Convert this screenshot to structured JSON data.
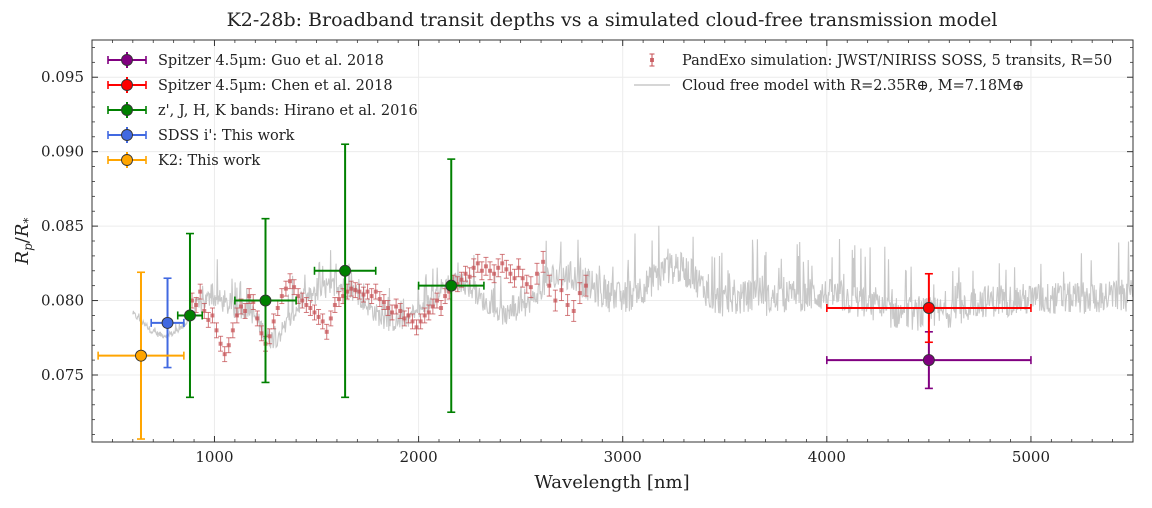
{
  "chart_data": {
    "type": "scatter",
    "title": "K2-28b: Broadband transit depths vs a simulated cloud-free transmission model",
    "xlabel": "Wavelength [nm]",
    "ylabel": "R_p/R_*",
    "xlim": [
      400,
      5500
    ],
    "ylim": [
      0.0705,
      0.0975
    ],
    "xticks": [
      1000,
      2000,
      3000,
      4000,
      5000
    ],
    "xtick_labels": [
      "1000",
      "2000",
      "3000",
      "4000",
      "5000"
    ],
    "yticks": [
      0.075,
      0.08,
      0.085,
      0.09,
      0.095
    ],
    "ytick_labels": [
      "0.075",
      "0.080",
      "0.085",
      "0.090",
      "0.095"
    ],
    "grid": true,
    "legend_left": [
      {
        "label": "Spitzer 4.5μm: Guo et al. 2018",
        "color": "#800080"
      },
      {
        "label": "Spitzer 4.5μm: Chen et al. 2018",
        "color": "#ff0000"
      },
      {
        "label": "z', J, H, K bands: Hirano et al. 2016",
        "color": "#008000"
      },
      {
        "label": "SDSS i': This work",
        "color": "#4169e1"
      },
      {
        "label": "K2: This work",
        "color": "#ffa500"
      }
    ],
    "legend_right": [
      {
        "label": "PandExo simulation: JWST/NIRISS SOSS, 5 transits, R=50",
        "color": "#c44e52"
      },
      {
        "label": "Cloud free model with R=2.35R⊕, M=7.18M⊕",
        "color": "#c8c8c8"
      }
    ],
    "series": [
      {
        "name": "Spitzer 4.5μm: Guo et al. 2018",
        "color": "#800080",
        "points": [
          {
            "x": 4500,
            "y": 0.076,
            "xerr": 500,
            "yerr": 0.0019
          }
        ]
      },
      {
        "name": "Spitzer 4.5μm: Chen et al. 2018",
        "color": "#ff0000",
        "points": [
          {
            "x": 4500,
            "y": 0.0795,
            "xerr": 500,
            "yerr": 0.0023
          }
        ]
      },
      {
        "name": "z', J, H, K bands: Hirano et al. 2016",
        "color": "#008000",
        "points": [
          {
            "x": 880,
            "y": 0.079,
            "xerr": 60,
            "yerr": 0.0055
          },
          {
            "x": 1250,
            "y": 0.08,
            "xerr": 150,
            "yerr": 0.0055
          },
          {
            "x": 1640,
            "y": 0.082,
            "xerr": 150,
            "yerr": 0.0085
          },
          {
            "x": 2160,
            "y": 0.081,
            "xerr": 160,
            "yerr": 0.0085
          }
        ]
      },
      {
        "name": "SDSS i': This work",
        "color": "#4169e1",
        "points": [
          {
            "x": 770,
            "y": 0.0785,
            "xerr": 80,
            "yerr": 0.003
          }
        ]
      },
      {
        "name": "K2: This work",
        "color": "#ffa500",
        "points": [
          {
            "x": 640,
            "y": 0.0763,
            "xerr": 210,
            "yerr": 0.0056
          }
        ]
      }
    ],
    "pandexo": {
      "name": "PandExo simulation: JWST/NIRISS SOSS, 5 transits, R=50",
      "color": "#c44e52",
      "points": [
        {
          "x": 890,
          "y": 0.08,
          "yerr": 0.0005
        },
        {
          "x": 910,
          "y": 0.0797,
          "yerr": 0.0005
        },
        {
          "x": 930,
          "y": 0.0806,
          "yerr": 0.0005
        },
        {
          "x": 950,
          "y": 0.0793,
          "yerr": 0.0005
        },
        {
          "x": 970,
          "y": 0.0787,
          "yerr": 0.0005
        },
        {
          "x": 990,
          "y": 0.079,
          "yerr": 0.0005
        },
        {
          "x": 1010,
          "y": 0.078,
          "yerr": 0.0005
        },
        {
          "x": 1030,
          "y": 0.0771,
          "yerr": 0.0005
        },
        {
          "x": 1050,
          "y": 0.0764,
          "yerr": 0.0005
        },
        {
          "x": 1070,
          "y": 0.077,
          "yerr": 0.0005
        },
        {
          "x": 1090,
          "y": 0.078,
          "yerr": 0.0005
        },
        {
          "x": 1110,
          "y": 0.079,
          "yerr": 0.0005
        },
        {
          "x": 1130,
          "y": 0.0796,
          "yerr": 0.0005
        },
        {
          "x": 1150,
          "y": 0.0793,
          "yerr": 0.0005
        },
        {
          "x": 1170,
          "y": 0.0803,
          "yerr": 0.0005
        },
        {
          "x": 1190,
          "y": 0.0799,
          "yerr": 0.0005
        },
        {
          "x": 1210,
          "y": 0.0788,
          "yerr": 0.0005
        },
        {
          "x": 1230,
          "y": 0.0778,
          "yerr": 0.0005
        },
        {
          "x": 1250,
          "y": 0.0771,
          "yerr": 0.0005
        },
        {
          "x": 1270,
          "y": 0.0776,
          "yerr": 0.0005
        },
        {
          "x": 1290,
          "y": 0.0786,
          "yerr": 0.0005
        },
        {
          "x": 1310,
          "y": 0.0795,
          "yerr": 0.0005
        },
        {
          "x": 1330,
          "y": 0.0803,
          "yerr": 0.0005
        },
        {
          "x": 1350,
          "y": 0.0808,
          "yerr": 0.0005
        },
        {
          "x": 1370,
          "y": 0.0813,
          "yerr": 0.0005
        },
        {
          "x": 1390,
          "y": 0.0809,
          "yerr": 0.0005
        },
        {
          "x": 1410,
          "y": 0.0803,
          "yerr": 0.0005
        },
        {
          "x": 1430,
          "y": 0.08,
          "yerr": 0.0005
        },
        {
          "x": 1450,
          "y": 0.0797,
          "yerr": 0.0005
        },
        {
          "x": 1470,
          "y": 0.0795,
          "yerr": 0.0005
        },
        {
          "x": 1490,
          "y": 0.0792,
          "yerr": 0.0005
        },
        {
          "x": 1510,
          "y": 0.0789,
          "yerr": 0.0005
        },
        {
          "x": 1530,
          "y": 0.0786,
          "yerr": 0.0005
        },
        {
          "x": 1550,
          "y": 0.0779,
          "yerr": 0.0005
        },
        {
          "x": 1570,
          "y": 0.0788,
          "yerr": 0.0005
        },
        {
          "x": 1590,
          "y": 0.0797,
          "yerr": 0.0005
        },
        {
          "x": 1610,
          "y": 0.0801,
          "yerr": 0.0005
        },
        {
          "x": 1630,
          "y": 0.0803,
          "yerr": 0.0005
        },
        {
          "x": 1650,
          "y": 0.0806,
          "yerr": 0.0005
        },
        {
          "x": 1670,
          "y": 0.0808,
          "yerr": 0.0005
        },
        {
          "x": 1690,
          "y": 0.0807,
          "yerr": 0.0005
        },
        {
          "x": 1710,
          "y": 0.0806,
          "yerr": 0.0005
        },
        {
          "x": 1730,
          "y": 0.0804,
          "yerr": 0.0005
        },
        {
          "x": 1750,
          "y": 0.0806,
          "yerr": 0.0005
        },
        {
          "x": 1770,
          "y": 0.0803,
          "yerr": 0.0005
        },
        {
          "x": 1790,
          "y": 0.0806,
          "yerr": 0.0005
        },
        {
          "x": 1810,
          "y": 0.0801,
          "yerr": 0.0005
        },
        {
          "x": 1830,
          "y": 0.0799,
          "yerr": 0.0005
        },
        {
          "x": 1850,
          "y": 0.0795,
          "yerr": 0.0005
        },
        {
          "x": 1870,
          "y": 0.0792,
          "yerr": 0.0005
        },
        {
          "x": 1890,
          "y": 0.0796,
          "yerr": 0.0005
        },
        {
          "x": 1910,
          "y": 0.0793,
          "yerr": 0.0005
        },
        {
          "x": 1930,
          "y": 0.0788,
          "yerr": 0.0005
        },
        {
          "x": 1950,
          "y": 0.079,
          "yerr": 0.0005
        },
        {
          "x": 1970,
          "y": 0.0786,
          "yerr": 0.0005
        },
        {
          "x": 1990,
          "y": 0.0782,
          "yerr": 0.0005
        },
        {
          "x": 2010,
          "y": 0.0786,
          "yerr": 0.0005
        },
        {
          "x": 2030,
          "y": 0.079,
          "yerr": 0.0005
        },
        {
          "x": 2050,
          "y": 0.0792,
          "yerr": 0.0005
        },
        {
          "x": 2070,
          "y": 0.0796,
          "yerr": 0.0005
        },
        {
          "x": 2090,
          "y": 0.08,
          "yerr": 0.0005
        },
        {
          "x": 2110,
          "y": 0.0795,
          "yerr": 0.0005
        },
        {
          "x": 2130,
          "y": 0.0803,
          "yerr": 0.0005
        },
        {
          "x": 2150,
          "y": 0.0806,
          "yerr": 0.0005
        },
        {
          "x": 2170,
          "y": 0.0812,
          "yerr": 0.0005
        },
        {
          "x": 2190,
          "y": 0.0811,
          "yerr": 0.0005
        },
        {
          "x": 2210,
          "y": 0.0814,
          "yerr": 0.0005
        },
        {
          "x": 2230,
          "y": 0.0818,
          "yerr": 0.0005
        },
        {
          "x": 2250,
          "y": 0.0816,
          "yerr": 0.0006
        },
        {
          "x": 2270,
          "y": 0.0822,
          "yerr": 0.0006
        },
        {
          "x": 2290,
          "y": 0.0825,
          "yerr": 0.0006
        },
        {
          "x": 2310,
          "y": 0.082,
          "yerr": 0.0006
        },
        {
          "x": 2330,
          "y": 0.0823,
          "yerr": 0.0006
        },
        {
          "x": 2350,
          "y": 0.082,
          "yerr": 0.0006
        },
        {
          "x": 2370,
          "y": 0.0818,
          "yerr": 0.0006
        },
        {
          "x": 2390,
          "y": 0.0822,
          "yerr": 0.0006
        },
        {
          "x": 2410,
          "y": 0.0825,
          "yerr": 0.0006
        },
        {
          "x": 2430,
          "y": 0.0821,
          "yerr": 0.0006
        },
        {
          "x": 2450,
          "y": 0.0818,
          "yerr": 0.0006
        },
        {
          "x": 2470,
          "y": 0.0815,
          "yerr": 0.0006
        },
        {
          "x": 2490,
          "y": 0.0822,
          "yerr": 0.0006
        },
        {
          "x": 2510,
          "y": 0.0815,
          "yerr": 0.0006
        },
        {
          "x": 2530,
          "y": 0.0811,
          "yerr": 0.0006
        },
        {
          "x": 2550,
          "y": 0.0809,
          "yerr": 0.0007
        },
        {
          "x": 2580,
          "y": 0.0818,
          "yerr": 0.0007
        },
        {
          "x": 2610,
          "y": 0.0826,
          "yerr": 0.0007
        },
        {
          "x": 2640,
          "y": 0.081,
          "yerr": 0.0007
        },
        {
          "x": 2670,
          "y": 0.08,
          "yerr": 0.0007
        },
        {
          "x": 2700,
          "y": 0.0807,
          "yerr": 0.0007
        },
        {
          "x": 2730,
          "y": 0.0797,
          "yerr": 0.0007
        },
        {
          "x": 2760,
          "y": 0.0793,
          "yerr": 0.0007
        },
        {
          "x": 2790,
          "y": 0.0805,
          "yerr": 0.0007
        },
        {
          "x": 2820,
          "y": 0.081,
          "yerr": 0.0007
        }
      ]
    }
  }
}
